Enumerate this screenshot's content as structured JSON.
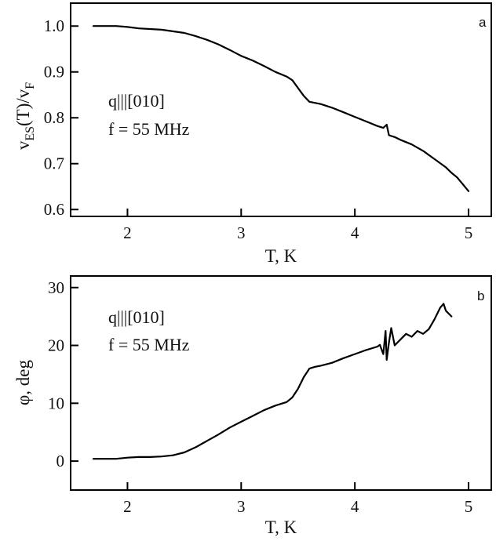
{
  "chart_data": [
    {
      "type": "line",
      "panel_label": "a",
      "xlabel": "T, K",
      "ylabel": "v_ES(T)/v_F",
      "ylabel_parts": {
        "v1": "v",
        "sub1": "ES",
        "mid": "(T)/v",
        "sub2": "F"
      },
      "xlim": [
        1.5,
        5.2
      ],
      "ylim": [
        0.585,
        1.05
      ],
      "xticks": [
        2,
        3,
        4,
        5
      ],
      "yticks": [
        0.6,
        0.7,
        0.8,
        0.9,
        1.0
      ],
      "xtick_labels": [
        "2",
        "3",
        "4",
        "5"
      ],
      "ytick_labels": [
        "0.6",
        "0.7",
        "0.8",
        "0.9",
        "1.0"
      ],
      "annotations": [
        "q|||[010]",
        "f = 55 MHz"
      ],
      "series": [
        {
          "x": [
            1.7,
            1.9,
            2.0,
            2.1,
            2.3,
            2.5,
            2.6,
            2.7,
            2.8,
            2.9,
            3.0,
            3.1,
            3.2,
            3.3,
            3.4,
            3.45,
            3.5,
            3.55,
            3.6,
            3.7,
            3.8,
            3.9,
            4.0,
            4.1,
            4.2,
            4.25,
            4.28,
            4.3,
            4.35,
            4.4,
            4.5,
            4.6,
            4.7,
            4.8,
            4.85,
            4.9,
            4.95,
            5.0
          ],
          "y": [
            1.0,
            1.0,
            0.998,
            0.995,
            0.992,
            0.985,
            0.978,
            0.97,
            0.96,
            0.948,
            0.935,
            0.925,
            0.913,
            0.9,
            0.89,
            0.882,
            0.865,
            0.848,
            0.835,
            0.83,
            0.822,
            0.812,
            0.802,
            0.792,
            0.782,
            0.778,
            0.785,
            0.762,
            0.758,
            0.752,
            0.742,
            0.728,
            0.71,
            0.692,
            0.68,
            0.67,
            0.655,
            0.64
          ]
        }
      ]
    },
    {
      "type": "line",
      "panel_label": "b",
      "xlabel": "T, K",
      "ylabel": "φ, deg",
      "xlim": [
        1.5,
        5.2
      ],
      "ylim": [
        -5,
        32
      ],
      "xticks": [
        2,
        3,
        4,
        5
      ],
      "yticks": [
        0,
        10,
        20,
        30
      ],
      "xtick_labels": [
        "2",
        "3",
        "4",
        "5"
      ],
      "ytick_labels": [
        "0",
        "10",
        "20",
        "30"
      ],
      "annotations": [
        "q|||[010]",
        "f = 55 MHz"
      ],
      "series": [
        {
          "x": [
            1.7,
            1.9,
            2.0,
            2.1,
            2.2,
            2.3,
            2.4,
            2.5,
            2.6,
            2.7,
            2.8,
            2.9,
            3.0,
            3.1,
            3.2,
            3.3,
            3.4,
            3.45,
            3.5,
            3.55,
            3.6,
            3.65,
            3.7,
            3.8,
            3.9,
            4.0,
            4.1,
            4.2,
            4.22,
            4.25,
            4.27,
            4.28,
            4.3,
            4.32,
            4.35,
            4.4,
            4.45,
            4.5,
            4.55,
            4.6,
            4.65,
            4.7,
            4.75,
            4.78,
            4.8,
            4.85
          ],
          "y": [
            0.4,
            0.4,
            0.6,
            0.7,
            0.7,
            0.8,
            1.0,
            1.5,
            2.4,
            3.5,
            4.6,
            5.8,
            6.8,
            7.8,
            8.8,
            9.6,
            10.2,
            11.0,
            12.5,
            14.5,
            16.0,
            16.3,
            16.5,
            17.0,
            17.8,
            18.5,
            19.2,
            19.8,
            20.1,
            18.5,
            22.5,
            17.5,
            20.5,
            23.0,
            20.0,
            21.0,
            22.0,
            21.5,
            22.5,
            22.0,
            22.8,
            24.5,
            26.5,
            27.2,
            26.0,
            25.0
          ]
        }
      ]
    }
  ]
}
